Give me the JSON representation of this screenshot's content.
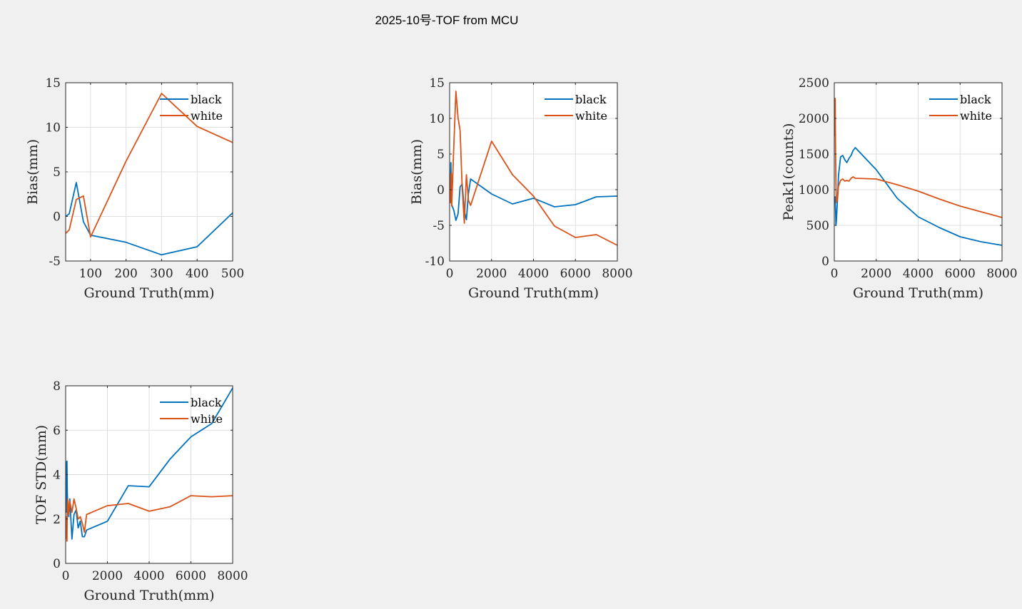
{
  "figure": {
    "title": "2025-10号-TOF from MCU"
  },
  "colors": {
    "black_series": "#0072BD",
    "white_series": "#D95319",
    "grid": "#dfdfdf",
    "axes_bg": "#ffffff"
  },
  "chart_data": [
    {
      "type": "line",
      "xlabel": "Ground Truth(mm)",
      "ylabel": "Bias(mm)",
      "xlim": [
        30,
        500
      ],
      "ylim": [
        -5,
        15
      ],
      "xticks": [
        100,
        200,
        300,
        400,
        500
      ],
      "yticks": [
        -5,
        0,
        5,
        10,
        15
      ],
      "grid": true,
      "legend": "top-right",
      "series": [
        {
          "name": "black",
          "x": [
            30,
            40,
            60,
            80,
            100,
            200,
            300,
            400,
            500
          ],
          "y": [
            0.0,
            0.3,
            3.8,
            -0.6,
            -2.1,
            -2.9,
            -4.3,
            -3.4,
            0.4
          ]
        },
        {
          "name": "white",
          "x": [
            30,
            40,
            60,
            80,
            100,
            200,
            300,
            400,
            500
          ],
          "y": [
            -1.9,
            -1.5,
            1.9,
            2.3,
            -2.3,
            6.2,
            13.8,
            10.1,
            8.3
          ]
        }
      ]
    },
    {
      "type": "line",
      "xlabel": "Ground Truth(mm)",
      "ylabel": "Bias(mm)",
      "xlim": [
        0,
        8000
      ],
      "ylim": [
        -10,
        15
      ],
      "xticks": [
        0,
        2000,
        4000,
        6000,
        8000
      ],
      "yticks": [
        -10,
        -5,
        0,
        5,
        10,
        15
      ],
      "grid": true,
      "legend": "top-right",
      "series": [
        {
          "name": "black",
          "x": [
            30,
            40,
            60,
            80,
            100,
            200,
            300,
            400,
            500,
            600,
            700,
            800,
            900,
            1000,
            2000,
            3000,
            4000,
            5000,
            6000,
            7000,
            8000
          ],
          "y": [
            0.0,
            0.3,
            3.8,
            -0.6,
            -2.1,
            -2.9,
            -4.3,
            -3.4,
            0.4,
            0.8,
            -3.0,
            -4.2,
            -0.5,
            1.5,
            -0.6,
            -2.0,
            -1.2,
            -2.4,
            -2.1,
            -1.0,
            -0.9
          ]
        },
        {
          "name": "white",
          "x": [
            30,
            40,
            60,
            80,
            100,
            200,
            300,
            400,
            500,
            600,
            700,
            800,
            900,
            1000,
            2000,
            3000,
            4000,
            5000,
            6000,
            7000,
            8000
          ],
          "y": [
            -1.9,
            -1.5,
            1.9,
            2.3,
            -2.3,
            6.2,
            13.8,
            10.1,
            8.3,
            0.2,
            -4.7,
            2.1,
            -1.5,
            -2.2,
            6.8,
            2.1,
            -0.9,
            -5.1,
            -6.7,
            -6.3,
            -7.8
          ]
        }
      ]
    },
    {
      "type": "line",
      "xlabel": "Ground Truth(mm)",
      "ylabel": "Peak1(counts)",
      "xlim": [
        0,
        8000
      ],
      "ylim": [
        0,
        2500
      ],
      "xticks": [
        0,
        2000,
        4000,
        6000,
        8000
      ],
      "yticks": [
        0,
        500,
        1000,
        1500,
        2000,
        2500
      ],
      "grid": true,
      "legend": "top-right",
      "series": [
        {
          "name": "black",
          "x": [
            30,
            40,
            60,
            80,
            100,
            150,
            200,
            300,
            400,
            500,
            600,
            700,
            800,
            900,
            1000,
            2000,
            3000,
            4000,
            5000,
            6000,
            7000,
            8000
          ],
          "y": [
            820,
            900,
            700,
            500,
            560,
            850,
            1200,
            1460,
            1480,
            1420,
            1380,
            1440,
            1480,
            1550,
            1590,
            1280,
            880,
            620,
            470,
            340,
            270,
            220
          ]
        },
        {
          "name": "white",
          "x": [
            30,
            40,
            60,
            80,
            100,
            150,
            200,
            300,
            400,
            500,
            600,
            700,
            800,
            900,
            1000,
            2000,
            3000,
            4000,
            5000,
            6000,
            7000,
            8000
          ],
          "y": [
            1750,
            2280,
            1500,
            1100,
            820,
            860,
            1050,
            1130,
            1150,
            1120,
            1130,
            1120,
            1160,
            1180,
            1160,
            1150,
            1070,
            980,
            870,
            770,
            690,
            610
          ]
        }
      ]
    },
    {
      "type": "line",
      "xlabel": "Ground Truth(mm)",
      "ylabel": "TOF STD(mm)",
      "xlim": [
        0,
        8000
      ],
      "ylim": [
        0,
        8
      ],
      "xticks": [
        0,
        2000,
        4000,
        6000,
        8000
      ],
      "yticks": [
        0,
        2,
        4,
        6,
        8
      ],
      "grid": true,
      "legend": "top-right",
      "series": [
        {
          "name": "black",
          "x": [
            30,
            40,
            60,
            80,
            100,
            150,
            200,
            300,
            400,
            500,
            600,
            700,
            800,
            900,
            1000,
            2000,
            3000,
            4000,
            5000,
            6000,
            7000,
            8000
          ],
          "y": [
            4.6,
            2.3,
            4.6,
            3.2,
            2.6,
            2.1,
            2.9,
            1.1,
            2.2,
            2.4,
            1.6,
            1.9,
            1.2,
            1.2,
            1.5,
            1.9,
            3.5,
            3.45,
            4.7,
            5.7,
            6.3,
            7.9
          ]
        },
        {
          "name": "white",
          "x": [
            30,
            40,
            60,
            80,
            100,
            150,
            200,
            300,
            400,
            500,
            600,
            700,
            800,
            900,
            1000,
            2000,
            3000,
            4000,
            5000,
            6000,
            7000,
            8000
          ],
          "y": [
            1.1,
            2.1,
            1.0,
            2.6,
            2.9,
            2.2,
            2.8,
            2.3,
            2.9,
            2.5,
            2.0,
            2.1,
            1.8,
            1.4,
            2.2,
            2.6,
            2.7,
            2.35,
            2.55,
            3.05,
            3.0,
            3.05
          ]
        }
      ]
    }
  ]
}
